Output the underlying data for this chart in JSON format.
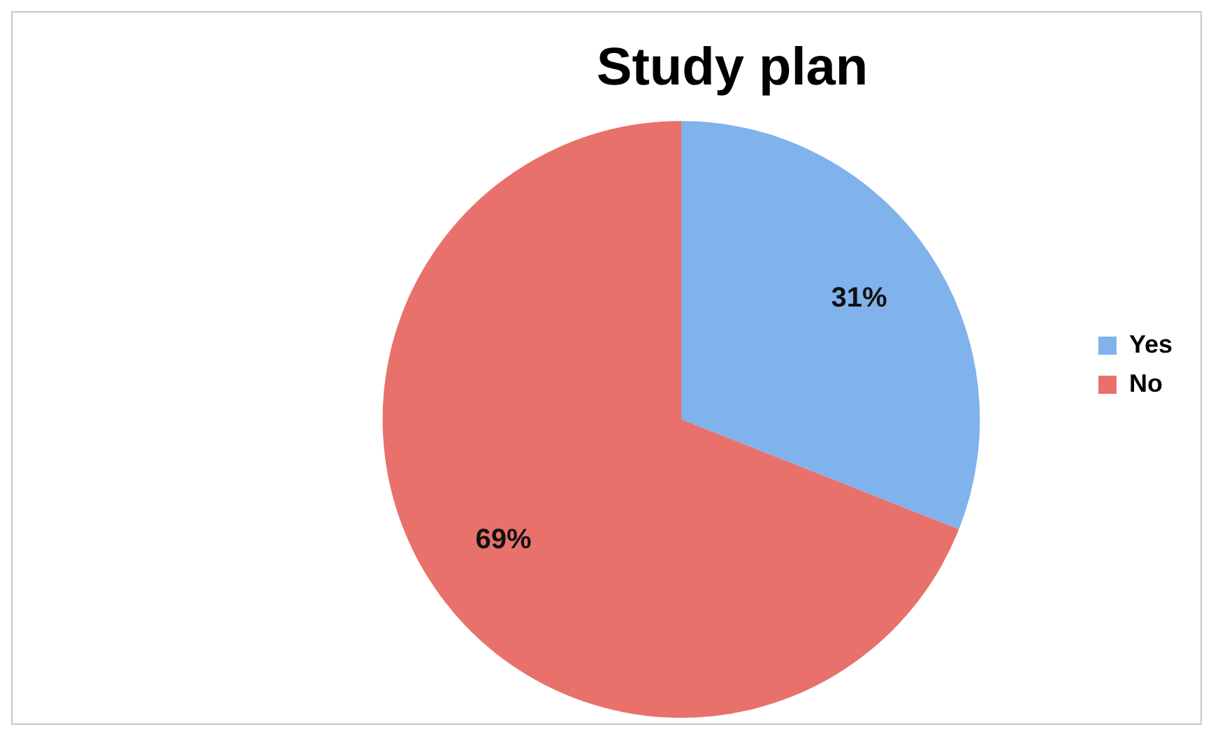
{
  "chart_data": {
    "type": "pie",
    "title": "Study plan",
    "categories": [
      "Yes",
      "No"
    ],
    "values": [
      31,
      69
    ],
    "colors": [
      "#80b2ec",
      "#e8716b"
    ],
    "value_labels": [
      "31%",
      "69%"
    ],
    "legend": "right"
  }
}
